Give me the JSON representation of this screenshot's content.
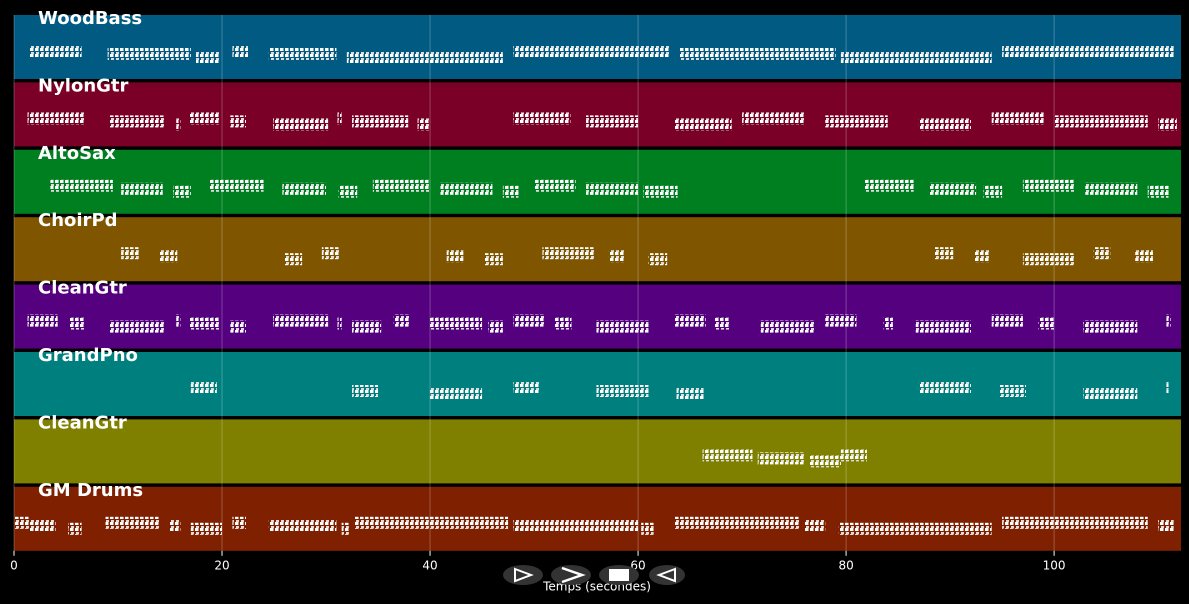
{
  "chart_data": {
    "type": "piano-roll",
    "x_label": "Temps (secondes)",
    "xlim": [
      0,
      112.2
    ],
    "xticks": [
      0,
      20,
      40,
      60,
      80,
      100
    ],
    "grid": true,
    "series": [
      {
        "name": "WoodBass",
        "color": "#005a82",
        "notes": [
          [
            1.5,
            6.5
          ],
          [
            9,
            17
          ],
          [
            17.5,
            19.8
          ],
          [
            21,
            22.5
          ],
          [
            24.5,
            31
          ],
          [
            32,
            47
          ],
          [
            48,
            63
          ],
          [
            64,
            79
          ],
          [
            79.5,
            94
          ],
          [
            95,
            111.5
          ]
        ]
      },
      {
        "name": "NylonGtr",
        "color": "#7a0028",
        "notes": [
          [
            1.3,
            6.8
          ],
          [
            9.2,
            14.5
          ],
          [
            15.6,
            16
          ],
          [
            16.9,
            19.8
          ],
          [
            20.8,
            22.3
          ],
          [
            24.9,
            30.2
          ],
          [
            31.1,
            31.5
          ],
          [
            32.5,
            37.9
          ],
          [
            38.8,
            40
          ],
          [
            48,
            53.5
          ],
          [
            55,
            60
          ],
          [
            63.5,
            69
          ],
          [
            70,
            76
          ],
          [
            78,
            84
          ],
          [
            87,
            92
          ],
          [
            94,
            99
          ],
          [
            100,
            109
          ],
          [
            110,
            111.8
          ]
        ]
      },
      {
        "name": "AltoSax",
        "color": "#007f20",
        "notes": [
          [
            3.5,
            9.5
          ],
          [
            10.3,
            14.3
          ],
          [
            15.3,
            17
          ],
          [
            18.8,
            24
          ],
          [
            25.8,
            30
          ],
          [
            31.2,
            33
          ],
          [
            34.5,
            40
          ],
          [
            41,
            46
          ],
          [
            47,
            48.5
          ],
          [
            50,
            54
          ],
          [
            55,
            60
          ],
          [
            60.5,
            63.8
          ],
          [
            81.8,
            86.5
          ],
          [
            88,
            92.5
          ],
          [
            93.2,
            95
          ],
          [
            97,
            102
          ],
          [
            103,
            108
          ],
          [
            109,
            111
          ]
        ]
      },
      {
        "name": "ChoirPd",
        "color": "#7f5500",
        "notes": [
          [
            10.3,
            12
          ],
          [
            14,
            15.7
          ],
          [
            26,
            27.7
          ],
          [
            29.6,
            31.3
          ],
          [
            41.6,
            43.2
          ],
          [
            45.2,
            47
          ],
          [
            50.8,
            55.8
          ],
          [
            57.2,
            58.7
          ],
          [
            61,
            62.8
          ],
          [
            88.5,
            90.3
          ],
          [
            92.3,
            93.8
          ],
          [
            97,
            102
          ],
          [
            103.8,
            105.4
          ],
          [
            107.8,
            109.5
          ]
        ]
      },
      {
        "name": "CleanGtr",
        "color": "#55007f",
        "notes": [
          [
            1.3,
            4.2
          ],
          [
            5.3,
            6.8
          ],
          [
            9.2,
            14.5
          ],
          [
            15.6,
            16
          ],
          [
            16.9,
            19.8
          ],
          [
            20.8,
            22.3
          ],
          [
            24.9,
            30.2
          ],
          [
            31.1,
            31.5
          ],
          [
            32.5,
            35.3
          ],
          [
            36.5,
            38
          ],
          [
            40,
            45
          ],
          [
            45.6,
            47
          ],
          [
            48,
            51
          ],
          [
            52,
            53.6
          ],
          [
            56,
            61
          ],
          [
            63.5,
            66.5
          ],
          [
            67.3,
            68.8
          ],
          [
            71.8,
            77
          ],
          [
            78,
            81
          ],
          [
            83.6,
            84.5
          ],
          [
            86.7,
            92
          ],
          [
            94,
            97
          ],
          [
            98.5,
            100
          ],
          [
            102.8,
            108
          ],
          [
            110.8,
            111.2
          ]
        ]
      },
      {
        "name": "GrandPno",
        "color": "#007f7f",
        "notes": [
          [
            17,
            19.5
          ],
          [
            32.5,
            35
          ],
          [
            40,
            45
          ],
          [
            48,
            50.5
          ],
          [
            56,
            61
          ],
          [
            63.7,
            66.3
          ],
          [
            87,
            92
          ],
          [
            94.8,
            97.3
          ],
          [
            102.8,
            108
          ],
          [
            110.8,
            111
          ]
        ]
      },
      {
        "name": "CleanGtr",
        "color": "#7f7f00",
        "notes": [
          [
            66.2,
            71
          ],
          [
            71.5,
            76
          ],
          [
            76.5,
            79.5
          ],
          [
            79.5,
            82
          ]
        ]
      },
      {
        "name": "GM Drums",
        "color": "#7f2000",
        "notes": [
          [
            0,
            1.5
          ],
          [
            1.5,
            4
          ],
          [
            5.2,
            6.5
          ],
          [
            8.8,
            14
          ],
          [
            15,
            16
          ],
          [
            17,
            20
          ],
          [
            21,
            22.3
          ],
          [
            24.5,
            31
          ],
          [
            31.5,
            32.2
          ],
          [
            32.7,
            47.5
          ],
          [
            48,
            60
          ],
          [
            60.3,
            61.5
          ],
          [
            63.5,
            75.5
          ],
          [
            76,
            78
          ],
          [
            79.3,
            94
          ],
          [
            95,
            109
          ],
          [
            110,
            111.5
          ]
        ]
      }
    ]
  }
}
